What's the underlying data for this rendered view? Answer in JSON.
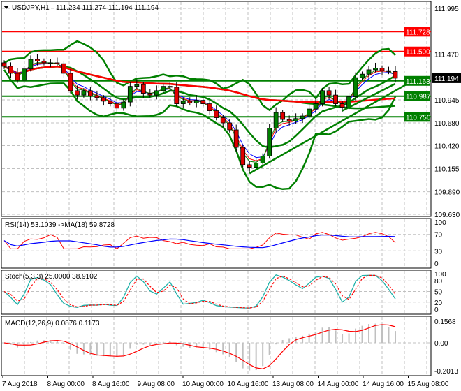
{
  "header": {
    "symbol": "USDJPY,H1",
    "ohlc": "111.234 111.274 111.194 111.194",
    "dropdown_icon": "triangle-down-icon"
  },
  "chart_data": {
    "type": "candlestick",
    "symbol": "USDJPY",
    "timeframe": "H1",
    "closes": [
      111.33,
      111.25,
      111.17,
      111.3,
      111.41,
      111.39,
      111.37,
      111.37,
      111.36,
      111.25,
      111.05,
      111.0,
      111.05,
      110.99,
      110.97,
      110.93,
      110.9,
      110.85,
      110.92,
      111.1,
      111.12,
      111.02,
      111.0,
      111.05,
      111.1,
      111.09,
      110.9,
      110.93,
      110.91,
      110.94,
      110.9,
      110.82,
      110.74,
      110.68,
      110.6,
      110.4,
      110.2,
      110.17,
      110.22,
      110.3,
      110.62,
      110.8,
      110.72,
      110.7,
      110.73,
      110.76,
      110.84,
      110.9,
      111.05,
      111.0,
      110.9,
      110.86,
      110.98,
      111.2,
      111.24,
      111.29,
      111.31,
      111.28,
      111.27,
      111.194
    ],
    "ylim": [
      109.63,
      111.995
    ],
    "price_ticks": [
      "111.995",
      "111.470",
      "110.945",
      "110.680",
      "110.420",
      "110.155",
      "109.890",
      "109.630"
    ],
    "time_ticks": [
      "7 Aug 2018",
      "8 Aug 00:00",
      "8 Aug 16:00",
      "9 Aug 08:00",
      "10 Aug 00:00",
      "10 Aug 16:00",
      "13 Aug 08:00",
      "14 Aug 00:00",
      "14 Aug 16:00",
      "15 Aug 08:00"
    ],
    "current_price": "111.194",
    "levels": [
      {
        "value": "111.728",
        "color": "#ff0000"
      },
      {
        "value": "111.500",
        "color": "#ff0000"
      },
      {
        "value": "111.163",
        "color": "#008000"
      },
      {
        "value": "110.987",
        "color": "#008000"
      },
      {
        "value": "110.750",
        "color": "#008000"
      }
    ],
    "trendlines": [
      {
        "from": [
          37,
          110.1
        ],
        "to": [
          62,
          111.18
        ],
        "color": "#008000"
      },
      {
        "from": [
          51,
          110.82
        ],
        "to": [
          59,
          111.13
        ],
        "color": "#008000"
      }
    ],
    "colors": {
      "bull": "#008000",
      "bear": "#e00000",
      "bands": "#008000",
      "ma_long": "#ff0000",
      "ma_fast_blue": "#0000ff",
      "ma_fast_red": "#ff0000",
      "ma_fast_green": "#008000",
      "rsi": "#ff0000",
      "rsi_ma": "#0000ff",
      "stoch_main": "#20b2aa",
      "stoch_signal": "#ff0000",
      "macd": "#c0c0c0",
      "macd_signal": "#ff0000"
    },
    "indicators": {
      "rsi": {
        "label": "RSI(14) 53.1039  ->MA(18) 59.8728",
        "ticks": [
          "100",
          "70",
          "30",
          "0"
        ]
      },
      "stoch": {
        "label": "Stoch(5,3,3) 25.0000 38.9102",
        "ticks": [
          "100",
          "80",
          "50",
          "20",
          "0"
        ]
      },
      "macd": {
        "label": "MACD(12,26,9) 0.0876 0.1173",
        "ticks": [
          "0.1568",
          "0.00",
          "-0.2013"
        ]
      }
    }
  }
}
